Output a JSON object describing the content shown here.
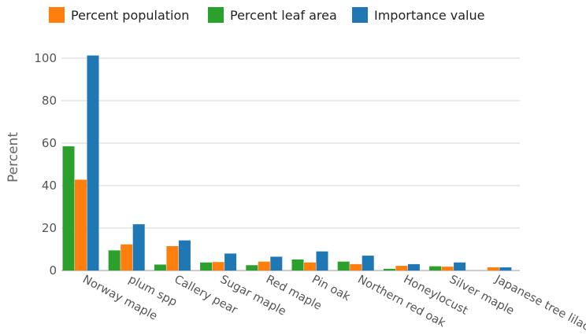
{
  "chart_data": {
    "type": "bar",
    "categories": [
      "Norway maple",
      "plum spp",
      "Callery pear",
      "Sugar maple",
      "Red maple",
      "Pin oak",
      "Northern red oak",
      "Honeylocust",
      "Silver maple",
      "Japanese tree lilac"
    ],
    "series": [
      {
        "name": "Percent leaf area",
        "color": "#2ca02c",
        "values": [
          58.5,
          9.5,
          2.8,
          3.8,
          2.5,
          5.2,
          4.2,
          0.8,
          2.0,
          0
        ]
      },
      {
        "name": "Percent population",
        "color": "#ff7f0e",
        "values": [
          42.8,
          12.3,
          11.5,
          4.0,
          4.2,
          3.8,
          3.0,
          2.2,
          1.8,
          1.5
        ]
      },
      {
        "name": "Importance value",
        "color": "#1f77b4",
        "values": [
          101.3,
          21.8,
          14.2,
          8.0,
          6.5,
          9.0,
          7.0,
          3.0,
          3.8,
          1.5
        ]
      }
    ],
    "legend_order": [
      "Percent population",
      "Percent leaf area",
      "Importance value"
    ],
    "ylabel": "Percent",
    "ylim": [
      0,
      101.5
    ],
    "yticks": [
      0,
      20,
      40,
      60,
      80,
      100
    ],
    "grid": true,
    "legend_position": "top"
  }
}
